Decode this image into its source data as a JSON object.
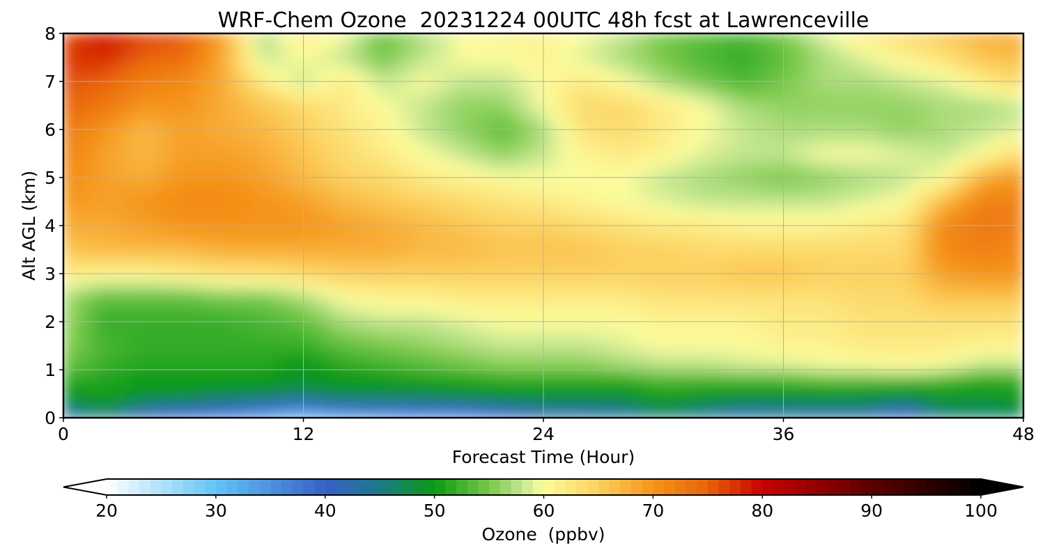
{
  "chart_data": {
    "type": "heatmap",
    "title": "WRF-Chem Ozone  20231224 00UTC 48h fcst at Lawrenceville",
    "xlabel": "Forecast Time (Hour)",
    "ylabel": "Alt AGL (km)",
    "xlim": [
      0,
      48
    ],
    "ylim": [
      0,
      8
    ],
    "x_ticks": [
      0,
      12,
      24,
      36,
      48
    ],
    "y_ticks": [
      0,
      1,
      2,
      3,
      4,
      5,
      6,
      7,
      8
    ],
    "grid": true,
    "x": [
      0,
      2,
      4,
      6,
      8,
      10,
      12,
      14,
      16,
      18,
      20,
      22,
      24,
      26,
      28,
      30,
      32,
      34,
      36,
      38,
      40,
      42,
      44,
      46,
      48
    ],
    "y": [
      0.0,
      0.2,
      0.4,
      0.6,
      0.8,
      1.0,
      1.5,
      2.0,
      2.5,
      3.0,
      3.5,
      4.0,
      4.5,
      5.0,
      5.5,
      6.0,
      6.5,
      7.0,
      7.5,
      8.0
    ],
    "values": [
      [
        40,
        45,
        40,
        38,
        36,
        34,
        30,
        32,
        33,
        34,
        34,
        38,
        41,
        41,
        42,
        45,
        43,
        41,
        42,
        41,
        41,
        38,
        45,
        46,
        47
      ],
      [
        45,
        48,
        43,
        42,
        40,
        38,
        36,
        39,
        39,
        40,
        40,
        42,
        44,
        44,
        45,
        48,
        46,
        44,
        45,
        45,
        45,
        42,
        47,
        47,
        48
      ],
      [
        48,
        50,
        48,
        47,
        46,
        45,
        44,
        46,
        46,
        46,
        47,
        48,
        48,
        48,
        48,
        50,
        49,
        48,
        48,
        48,
        48,
        47,
        49,
        49,
        50
      ],
      [
        50,
        51,
        50,
        50,
        49,
        49,
        48,
        49,
        49,
        49,
        50,
        50,
        50,
        50,
        50,
        52,
        51,
        51,
        51,
        51,
        51,
        50,
        51,
        51,
        51
      ],
      [
        52,
        51,
        50,
        50,
        50,
        50,
        49,
        50,
        50,
        51,
        51,
        52,
        52,
        52,
        52,
        53,
        53,
        53,
        53,
        54,
        54,
        54,
        53,
        51,
        52
      ],
      [
        54,
        52,
        51,
        51,
        51,
        51,
        49,
        51,
        52,
        53,
        54,
        55,
        55,
        55,
        56,
        57,
        57,
        58,
        58,
        59,
        59,
        60,
        59,
        57,
        57
      ],
      [
        56,
        53,
        52,
        52,
        52,
        52,
        52,
        54,
        55,
        56,
        57,
        58,
        58,
        58,
        59,
        60,
        60,
        60,
        61,
        61,
        62,
        62,
        62,
        61,
        61
      ],
      [
        57,
        52,
        52,
        52,
        52,
        53,
        54,
        57,
        58,
        58,
        59,
        60,
        60,
        60,
        60,
        61,
        61,
        61,
        62,
        62,
        63,
        63,
        63,
        63,
        63
      ],
      [
        57,
        54,
        54,
        54,
        55,
        55,
        57,
        60,
        61,
        61,
        62,
        62,
        62,
        62,
        62,
        63,
        63,
        63,
        63,
        63,
        64,
        64,
        66,
        66,
        66
      ],
      [
        62,
        61,
        61,
        62,
        63,
        63,
        64,
        65,
        65,
        65,
        65,
        65,
        65,
        65,
        65,
        65,
        65,
        66,
        66,
        65,
        65,
        65,
        69,
        70,
        70
      ],
      [
        66,
        67,
        67,
        67,
        68,
        68,
        68,
        68,
        68,
        67,
        67,
        66,
        66,
        66,
        65,
        65,
        64,
        64,
        64,
        64,
        64,
        64,
        71,
        72,
        71
      ],
      [
        68,
        68,
        69,
        70,
        70,
        70,
        70,
        69,
        68,
        67,
        66,
        65,
        65,
        64,
        63,
        62,
        62,
        61,
        61,
        61,
        62,
        63,
        71,
        73,
        72
      ],
      [
        70,
        69,
        70,
        71,
        71,
        70,
        69,
        67,
        66,
        65,
        64,
        63,
        62,
        61,
        60,
        59,
        58,
        58,
        58,
        58,
        59,
        60,
        67,
        72,
        72
      ],
      [
        71,
        69,
        68,
        70,
        70,
        69,
        67,
        65,
        64,
        62,
        61,
        60,
        60,
        60,
        60,
        58,
        57,
        56,
        55,
        56,
        57,
        58,
        60,
        68,
        70
      ],
      [
        72,
        69,
        67,
        69,
        69,
        68,
        66,
        64,
        62,
        60,
        58,
        56,
        58,
        61,
        62,
        61,
        59,
        58,
        58,
        60,
        60,
        59,
        58,
        60,
        64
      ],
      [
        73,
        70,
        67,
        69,
        68,
        67,
        65,
        63,
        61,
        58,
        56,
        54,
        57,
        63,
        64,
        62,
        60,
        58,
        57,
        57,
        57,
        56,
        57,
        58,
        59
      ],
      [
        75,
        73,
        70,
        70,
        68,
        66,
        64,
        62,
        60,
        58,
        56,
        56,
        60,
        64,
        64,
        62,
        60,
        57,
        56,
        56,
        56,
        56,
        57,
        57,
        58
      ],
      [
        76,
        75,
        72,
        71,
        68,
        62,
        58,
        62,
        58,
        60,
        58,
        58,
        60,
        62,
        60,
        57,
        55,
        53,
        55,
        57,
        57,
        58,
        59,
        62,
        64
      ],
      [
        77,
        78,
        75,
        74,
        68,
        58,
        60,
        58,
        55,
        58,
        60,
        60,
        61,
        59,
        57,
        55,
        53,
        52,
        54,
        57,
        59,
        61,
        63,
        66,
        67
      ],
      [
        76,
        79,
        77,
        76,
        69,
        57,
        62,
        60,
        54,
        57,
        60,
        61,
        61,
        60,
        58,
        55,
        54,
        53,
        55,
        59,
        62,
        64,
        66,
        68,
        68
      ]
    ],
    "colorbar": {
      "label": "Ozone  (ppbv)",
      "min": 20,
      "max": 100,
      "ticks": [
        20,
        30,
        40,
        50,
        60,
        70,
        80,
        90,
        100
      ],
      "extend": "both",
      "stops": [
        [
          20,
          "#ffffff"
        ],
        [
          30,
          "#62c4f5"
        ],
        [
          40,
          "#3760c5"
        ],
        [
          45,
          "#1c7a88"
        ],
        [
          50,
          "#0a9a14"
        ],
        [
          55,
          "#78c84a"
        ],
        [
          58,
          "#c4e690"
        ],
        [
          60,
          "#fcfc9c"
        ],
        [
          65,
          "#fcd160"
        ],
        [
          70,
          "#f5941a"
        ],
        [
          75,
          "#e8640a"
        ],
        [
          80,
          "#c80000"
        ],
        [
          90,
          "#5c0000"
        ],
        [
          100,
          "#000000"
        ]
      ]
    }
  }
}
